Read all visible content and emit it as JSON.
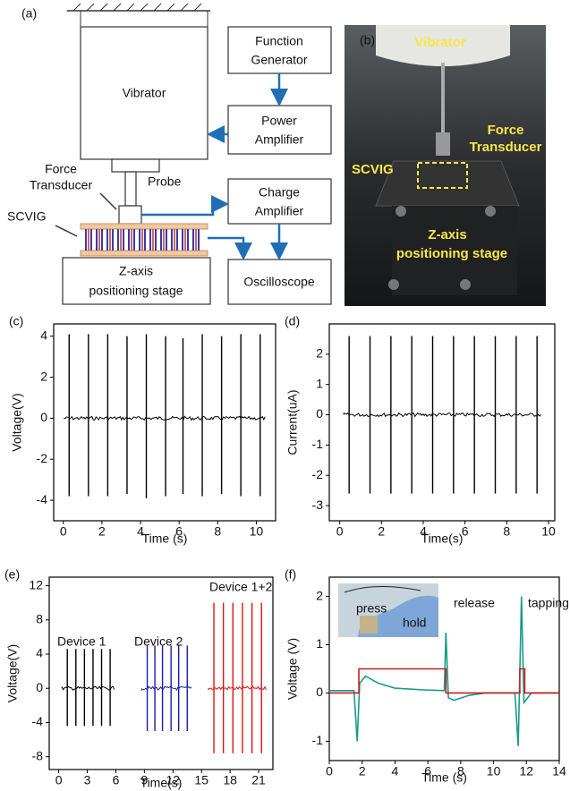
{
  "diagram": {
    "label": "(a)",
    "vibrator": "Vibrator",
    "function_generator": [
      "Function",
      "Generator"
    ],
    "power_amplifier": [
      "Power",
      "Amplifier"
    ],
    "charge_amplifier": [
      "Charge",
      "Amplifier"
    ],
    "oscilloscope": "Oscilloscope",
    "stage": [
      "Z-axis",
      "positioning stage"
    ],
    "force_transducer": [
      "Force",
      "Transducer"
    ],
    "probe": "Probe",
    "scvig": "SCVIG"
  },
  "photo": {
    "label": "(b)",
    "vibrator": "Vibrator",
    "force_transducer": [
      "Force",
      "Transducer"
    ],
    "scvig": "SCVIG",
    "stage": [
      "Z-axis",
      "positioning stage"
    ]
  },
  "chart_data": [
    {
      "type": "spike",
      "label": "(c)",
      "x_label": "Time (s)",
      "y_label": "Voltage(V)",
      "xlim": [
        -0.5,
        11
      ],
      "xticks": [
        0,
        2,
        4,
        6,
        8,
        10
      ],
      "ylim": [
        -5,
        4.6
      ],
      "yticks": [
        -4,
        -2,
        0,
        2,
        4
      ],
      "series": [
        {
          "color": "#000000",
          "x": [
            0.3,
            1.3,
            2.3,
            3.3,
            4.3,
            5.3,
            6.2,
            7.2,
            8.2,
            9.2,
            10.2
          ],
          "peaks": [
            4.1,
            4.1,
            4.1,
            4.0,
            4.1,
            4.0,
            3.9,
            4.1,
            4.0,
            4.1,
            4.1
          ],
          "troughs": [
            -3.8,
            -3.8,
            -3.8,
            -3.7,
            -3.9,
            -3.8,
            -3.7,
            -3.8,
            -3.7,
            -3.8,
            -3.8
          ]
        }
      ]
    },
    {
      "type": "spike",
      "label": "(d)",
      "x_label": "Time(s)",
      "y_label": "Current(uA)",
      "xlim": [
        -0.5,
        10.3
      ],
      "xticks": [
        0,
        2,
        4,
        6,
        8,
        10
      ],
      "ylim": [
        -3.5,
        3
      ],
      "yticks": [
        -3,
        -2,
        -1,
        0,
        1,
        2
      ],
      "series": [
        {
          "color": "#000000",
          "x": [
            0.45,
            1.45,
            2.45,
            3.45,
            4.45,
            5.45,
            6.45,
            7.45,
            8.45,
            9.45
          ],
          "peaks": [
            2.6,
            2.6,
            2.6,
            2.6,
            2.6,
            2.6,
            2.6,
            2.6,
            2.6,
            2.6
          ],
          "troughs": [
            -2.6,
            -2.6,
            -2.6,
            -2.6,
            -2.6,
            -2.6,
            -2.6,
            -2.6,
            -2.6,
            -2.6
          ]
        }
      ]
    },
    {
      "type": "spike",
      "label": "(e)",
      "x_label": "Time(s)",
      "y_label": "Voltage(V)",
      "xlim": [
        -1,
        22.5
      ],
      "xticks": [
        0,
        3,
        6,
        9,
        12,
        15,
        18,
        21
      ],
      "ylim": [
        -9.5,
        13
      ],
      "yticks": [
        -8,
        -4,
        0,
        4,
        8,
        12
      ],
      "series": [
        {
          "name": "Device 1",
          "color": "#000000",
          "x": [
            0.9,
            1.8,
            2.7,
            3.6,
            4.5,
            5.4
          ],
          "peaks": [
            4.6,
            4.6,
            4.6,
            4.6,
            4.6,
            4.6
          ],
          "troughs": [
            -4.4,
            -4.4,
            -4.4,
            -4.4,
            -4.4,
            -4.4
          ]
        },
        {
          "name": "Device 2",
          "color": "#1a1aa8",
          "x": [
            9.3,
            10.1,
            10.9,
            11.8,
            12.6,
            13.5
          ],
          "peaks": [
            5,
            5,
            5,
            5,
            5,
            5
          ],
          "troughs": [
            -5,
            -5,
            -5,
            -5,
            -5,
            -5
          ]
        },
        {
          "name": "Device 1+2",
          "color": "#e01010",
          "x": [
            16.3,
            17.3,
            18.3,
            19.3,
            20.3,
            21.3
          ],
          "peaks": [
            10,
            10,
            10,
            10,
            10,
            10
          ],
          "troughs": [
            -7.6,
            -7.6,
            -7.6,
            -7.6,
            -7.6,
            -7.6
          ]
        }
      ]
    },
    {
      "type": "line",
      "label": "(f)",
      "x_label": "Time (s)",
      "y_label": "Voltage (V)",
      "xlim": [
        0,
        14
      ],
      "xticks": [
        0,
        2,
        4,
        6,
        8,
        10,
        12,
        14
      ],
      "ylim": [
        -1.4,
        2.4
      ],
      "yticks": [
        -1,
        0,
        1,
        2
      ],
      "annotations": [
        "press",
        "hold",
        "release",
        "tapping"
      ],
      "series": [
        {
          "color": "#1a9a8a",
          "x": [
            0,
            1.5,
            1.7,
            1.85,
            2.2,
            3,
            4,
            5,
            6,
            7,
            7.1,
            7.25,
            7.6,
            8.5,
            9.5,
            11.3,
            11.5,
            11.7,
            11.85,
            12.3,
            14
          ],
          "values": [
            0.05,
            0.05,
            -1.0,
            0.2,
            0.35,
            0.2,
            0.1,
            0.08,
            0.06,
            0.05,
            1.25,
            -0.1,
            -0.15,
            -0.05,
            0,
            0,
            -1.1,
            2.0,
            -0.2,
            0,
            0
          ]
        },
        {
          "color": "#c81e1e",
          "x": [
            0,
            1.8,
            1.8,
            7.1,
            7.1,
            11.6,
            11.6,
            11.9,
            11.9,
            14
          ],
          "values": [
            0,
            0,
            0.5,
            0.5,
            0,
            0,
            0.5,
            0.5,
            0,
            0
          ]
        }
      ]
    }
  ]
}
